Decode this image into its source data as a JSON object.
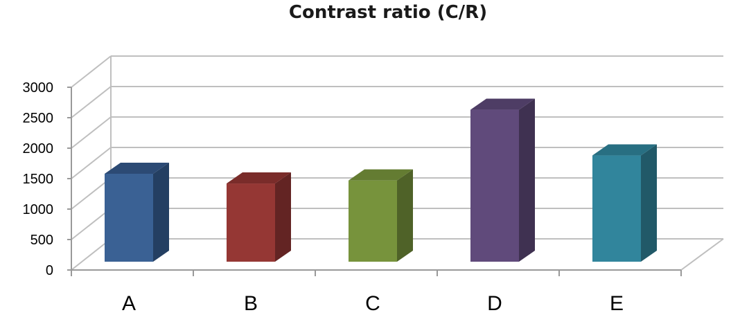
{
  "chart_data": {
    "type": "bar",
    "title": "Contrast ratio (C/R)",
    "xlabel": "",
    "ylabel": "",
    "categories": [
      "A",
      "B",
      "C",
      "D",
      "E"
    ],
    "values": [
      1580,
      1420,
      1470,
      2630,
      1880
    ],
    "ylim": [
      0,
      3000
    ],
    "yticks": [
      0,
      500,
      1000,
      1500,
      2000,
      2500,
      3000
    ],
    "ytick_labels": [
      "0",
      "500",
      "1000",
      "1500",
      "2000",
      "2500",
      "3000"
    ],
    "grid": true,
    "legend": "none",
    "style": "3d-column",
    "colors": {
      "A": {
        "front": "#3A6194",
        "side": "#243F62",
        "top": "#2C4A74"
      },
      "B": {
        "front": "#953734",
        "side": "#632423",
        "top": "#7A2C2A"
      },
      "C": {
        "front": "#77933C",
        "side": "#4F6228",
        "top": "#647C32"
      },
      "D": {
        "front": "#604A7B",
        "side": "#3F3151",
        "top": "#4E3D65"
      },
      "E": {
        "front": "#31859C",
        "side": "#215968",
        "top": "#286F82"
      }
    },
    "gridline_color": "#BFBFBF",
    "axis_color": "#999999"
  }
}
